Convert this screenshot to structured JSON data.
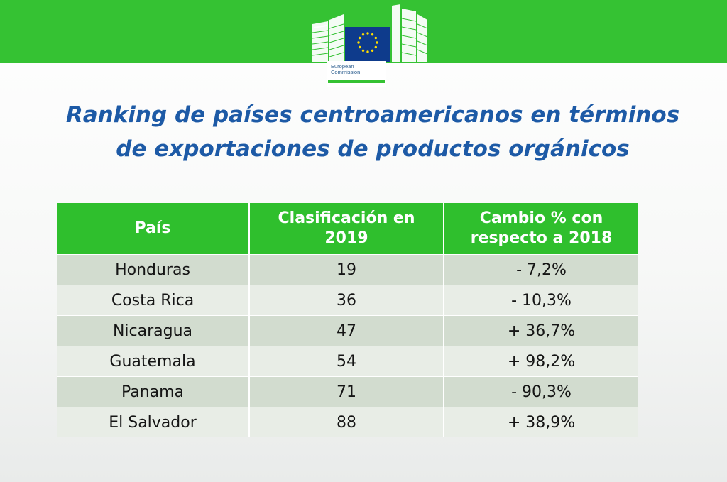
{
  "logo": {
    "line1": "European",
    "line2": "Commission",
    "flag_color": "#0e3b8c",
    "star_color": "#ffde00"
  },
  "title": {
    "line1": "Ranking de países centroamericanos en términos",
    "line2": "de exportaciones de productos orgánicos"
  },
  "table": {
    "headers": [
      {
        "line1": "País",
        "line2": ""
      },
      {
        "line1": "Clasificación en",
        "line2": "2019"
      },
      {
        "line1": "Cambio % con",
        "line2": "respecto a 2018"
      }
    ],
    "rows": [
      {
        "pais": "Honduras",
        "clasificacion": "19",
        "cambio": "- 7,2%"
      },
      {
        "pais": "Costa Rica",
        "clasificacion": "36",
        "cambio": "- 10,3%"
      },
      {
        "pais": "Nicaragua",
        "clasificacion": "47",
        "cambio": "+ 36,7%"
      },
      {
        "pais": "Guatemala",
        "clasificacion": "54",
        "cambio": "+ 98,2%"
      },
      {
        "pais": "Panama",
        "clasificacion": "71",
        "cambio": "- 90,3%"
      },
      {
        "pais": "El Salvador",
        "clasificacion": "88",
        "cambio": "+ 38,9%"
      }
    ]
  },
  "colors": {
    "header_green": "#2fbf2d",
    "band_green": "#35c233",
    "title_blue": "#1d5aa6"
  }
}
